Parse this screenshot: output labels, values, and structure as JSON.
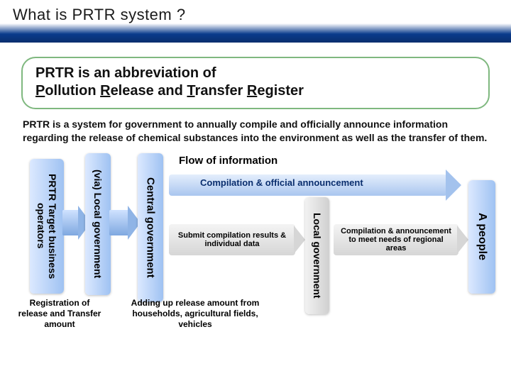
{
  "title": "What is PRTR system ?",
  "definition": {
    "line1": "PRTR is an abbreviation of",
    "p": "P",
    "rest_p": "ollution ",
    "r1": "R",
    "rest_r1": "elease and ",
    "t": "T",
    "rest_t": "ransfer ",
    "r2": "R",
    "rest_r2": "egister"
  },
  "description": "PRTR is a system for government to annually compile and officially announce information regarding the release of chemical substances into the environment as well as the transfer of them.",
  "flow": {
    "heading": "Flow of information",
    "prtr_target": "PRTR Target business operators",
    "via_local": "(via) Local government",
    "central": "Central government",
    "local_gov2": "Local government",
    "people": "A people",
    "big_arrow_label": "Compilation & official announcement",
    "sub1": "Submit compilation results & individual data",
    "sub2": "Compilation & announcement to meet needs of regional areas",
    "cap1": "Registration of release and Transfer amount",
    "cap2": "Adding up release amount from households, agricultural fields, vehicles"
  },
  "colors": {
    "header_gradient_top": "#ffffff",
    "header_gradient_bottom": "#0a2e6e",
    "def_border": "#7fb87f",
    "pill_blue_light": "#dce9ff",
    "pill_blue_dark": "#9fc2f2",
    "pill_grey_light": "#f2f2f2",
    "pill_grey_dark": "#d0d0d0",
    "big_arrow_text": "#0a2e6e"
  }
}
